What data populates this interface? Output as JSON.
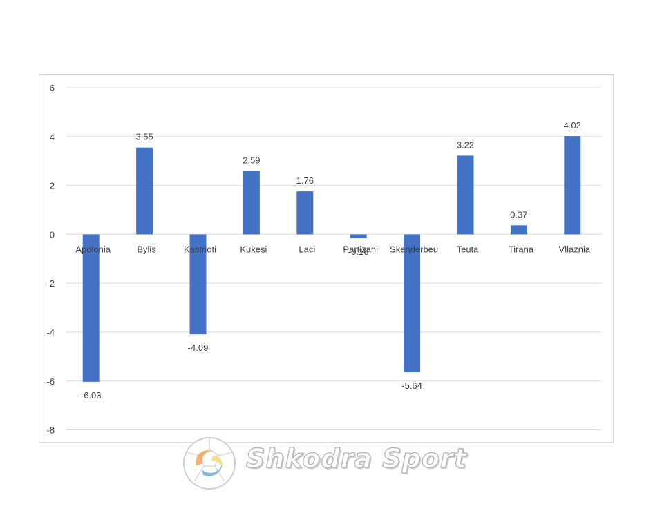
{
  "chart_data": {
    "type": "bar",
    "categories": [
      "Apolonia",
      "Bylis",
      "Kastrioti",
      "Kukesi",
      "Laci",
      "Partizani",
      "Skenderbeu",
      "Teuta",
      "Tirana",
      "Vllaznia"
    ],
    "values": [
      -6.03,
      3.55,
      -4.09,
      2.59,
      1.76,
      -0.16,
      -5.64,
      3.22,
      0.37,
      4.02
    ],
    "data_labels": [
      "-6.03",
      "3.55",
      "-4.09",
      "2.59",
      "1.76",
      "-0.16",
      "-5.64",
      "3.22",
      "0.37",
      "4.02"
    ],
    "yticks": [
      "6",
      "4",
      "2",
      "0",
      "-2",
      "-4",
      "-6",
      "-8"
    ],
    "ylim": [
      -8,
      6
    ],
    "title": "",
    "xlabel": "",
    "ylabel": "",
    "grid": true,
    "legend": "none",
    "bar_color": "#4472c4",
    "grid_color": "#d9d9d9",
    "text_color": "#404040"
  },
  "watermark": {
    "text": "Shkodra Sport",
    "icon": "soccer-ball-logo-icon"
  }
}
